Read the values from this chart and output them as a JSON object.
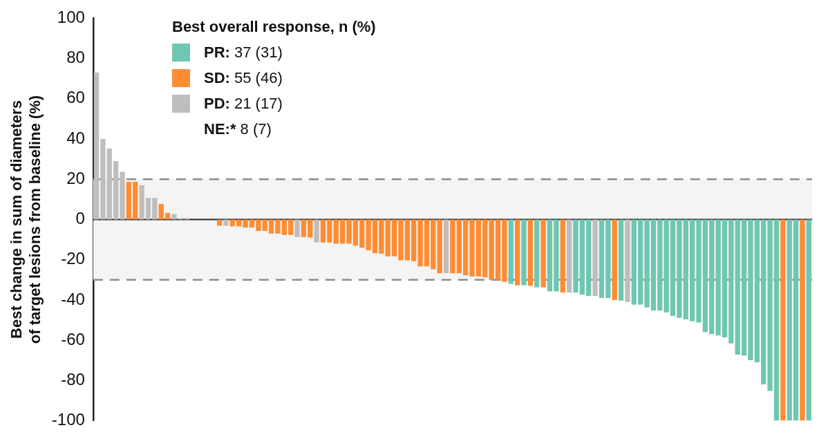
{
  "chart_data": {
    "type": "bar",
    "ylabel": "Best change in sum of diameters\nof target lesions from baseline (%)",
    "legend_title": "Best overall response, n (%)",
    "legend": "top",
    "categories": [
      null,
      null,
      null,
      null,
      null,
      null,
      null,
      null,
      null,
      null,
      null,
      null,
      null,
      null,
      null,
      null,
      null,
      null,
      null,
      null,
      null,
      null,
      null,
      null,
      null,
      null,
      null,
      null,
      null,
      null,
      null,
      null,
      null,
      null,
      null,
      null,
      null,
      null,
      null,
      null,
      null,
      null,
      null,
      null,
      null,
      null,
      null,
      null,
      null,
      null,
      null,
      null,
      null,
      null,
      null,
      null,
      null,
      null,
      null,
      null,
      null,
      null,
      null,
      null,
      null,
      null,
      null,
      null,
      null,
      null,
      null,
      null,
      null,
      null,
      null,
      null,
      null,
      null,
      null,
      null,
      null,
      null,
      null,
      null,
      null,
      null,
      null,
      null,
      null,
      null,
      null,
      null,
      null,
      null,
      null,
      null,
      null,
      null,
      null,
      null,
      null,
      null,
      null,
      null,
      null,
      null,
      null,
      null,
      null,
      null,
      null
    ],
    "series": [
      {
        "name": "PR: 37 (31)",
        "color": "#6fc7b1",
        "values": [
          null,
          null,
          null,
          null,
          null,
          null,
          null,
          null,
          null,
          null,
          null,
          null,
          null,
          null,
          null,
          null,
          null,
          null,
          null,
          null,
          null,
          null,
          null,
          null,
          null,
          null,
          null,
          null,
          null,
          null,
          null,
          null,
          null,
          null,
          null,
          null,
          null,
          null,
          null,
          null,
          null,
          null,
          null,
          null,
          null,
          null,
          null,
          null,
          null,
          null,
          null,
          null,
          null,
          null,
          null,
          null,
          null,
          null,
          null,
          null,
          null,
          null,
          null,
          null,
          -32,
          null,
          -32.7,
          null,
          -33.7,
          null,
          -35.7,
          -35.7,
          null,
          null,
          -36.3,
          -37.3,
          -38,
          null,
          -39,
          -39,
          null,
          -40.3,
          null,
          -42.3,
          -42.3,
          -43.7,
          -45.3,
          -45.3,
          -46.2,
          -47.9,
          -48.9,
          -49.6,
          -50.6,
          -51.2,
          -55.9,
          -56.9,
          -57.6,
          -58.6,
          -61.6,
          -67.2,
          -67.6,
          -69.9,
          -70.9,
          -81.9,
          -85.2,
          -100,
          null,
          -100,
          -100,
          null,
          -100
        ]
      },
      {
        "name": "SD: 55 (46)",
        "color": "#ff8c32",
        "values": [
          null,
          null,
          null,
          null,
          null,
          18.7,
          18.7,
          null,
          null,
          null,
          7.7,
          3.3,
          null,
          null,
          null,
          null,
          null,
          null,
          null,
          -3.1,
          null,
          -3.4,
          -3.4,
          -4,
          -4,
          -5.7,
          -5.7,
          -7,
          -7,
          -7.7,
          -7.7,
          null,
          -8.7,
          -9,
          null,
          -11.4,
          -11.4,
          -12,
          -12,
          -12,
          -13,
          -14,
          -15.3,
          -16.7,
          -17,
          -18.3,
          -18.3,
          -20.3,
          -20.3,
          -20.7,
          -23.3,
          -23.3,
          -24.7,
          -26.7,
          null,
          -26.7,
          -26.7,
          -27.7,
          -28.3,
          -28.3,
          -28.7,
          -30,
          -30,
          -31,
          null,
          -32.7,
          null,
          -33,
          null,
          -33.7,
          null,
          null,
          -36.3,
          null,
          null,
          null,
          null,
          null,
          null,
          null,
          -40,
          null,
          null,
          null,
          null,
          null,
          null,
          null,
          null,
          null,
          null,
          null,
          null,
          null,
          null,
          null,
          null,
          null,
          null,
          null,
          null,
          null,
          null,
          null,
          null,
          null,
          -100,
          null,
          null,
          -100,
          null
        ]
      },
      {
        "name": "PD: 21 (17)",
        "color": "#bebebe",
        "values": [
          73,
          40,
          35.3,
          29,
          23.7,
          null,
          null,
          17,
          10.7,
          10.7,
          null,
          null,
          2.7,
          0.7,
          0.7,
          0,
          0,
          0,
          0,
          null,
          -3.1,
          null,
          null,
          null,
          null,
          null,
          null,
          null,
          null,
          null,
          null,
          -8.7,
          null,
          null,
          -11.4,
          null,
          null,
          null,
          null,
          null,
          null,
          null,
          null,
          null,
          null,
          null,
          null,
          null,
          null,
          null,
          null,
          null,
          null,
          null,
          -26.7,
          null,
          null,
          null,
          null,
          null,
          null,
          null,
          null,
          null,
          null,
          null,
          null,
          null,
          null,
          null,
          null,
          null,
          null,
          -36.3,
          null,
          null,
          null,
          -38,
          null,
          null,
          null,
          null,
          -41,
          null,
          null,
          null,
          null,
          null,
          null,
          null,
          null,
          null,
          null,
          null,
          null,
          null,
          null,
          null,
          null,
          null,
          null,
          null,
          null,
          null,
          null,
          null,
          null,
          null,
          null,
          null,
          null
        ]
      }
    ],
    "annotations": [
      "NE:* 8 (7)"
    ],
    "ylim": [
      -100,
      100
    ],
    "yticks": [
      -100,
      -80,
      -60,
      -40,
      -20,
      0,
      20,
      40,
      60,
      80,
      100
    ],
    "ref_lines": [
      {
        "axis": "y",
        "value": 20,
        "color": "#8c8c8c",
        "line_style": "dashed"
      },
      {
        "axis": "y",
        "value": -30,
        "color": "#8c8c8c",
        "line_style": "dashed"
      }
    ],
    "bands": [
      {
        "axis": "y",
        "from": -30,
        "to": 20,
        "color": "#f4f4f4"
      }
    ]
  }
}
